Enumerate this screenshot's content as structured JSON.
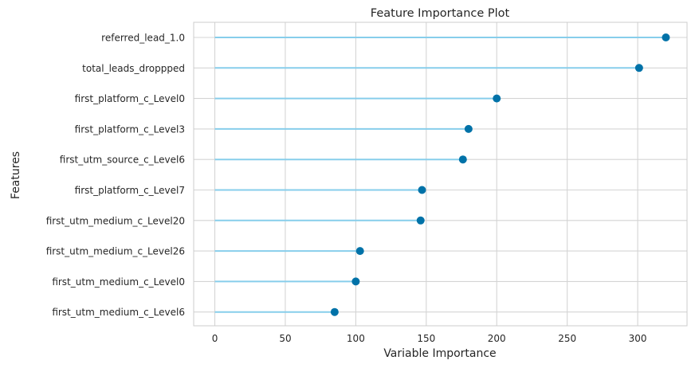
{
  "chart_data": {
    "type": "lollipop",
    "title": "Feature Importance Plot",
    "xlabel": "Variable Importance",
    "ylabel": "Features",
    "xlim": [
      -15,
      335
    ],
    "xticks": [
      0,
      50,
      100,
      150,
      200,
      250,
      300
    ],
    "grid": true,
    "colors": {
      "stem": "#87ceeb",
      "marker": "#0072a8",
      "grid": "#d4d4d4",
      "frame": "#cccccc"
    },
    "categories": [
      "referred_lead_1.0",
      "total_leads_droppped",
      "first_platform_c_Level0",
      "first_platform_c_Level3",
      "first_utm_source_c_Level6",
      "first_platform_c_Level7",
      "first_utm_medium_c_Level20",
      "first_utm_medium_c_Level26",
      "first_utm_medium_c_Level0",
      "first_utm_medium_c_Level6"
    ],
    "values": [
      320,
      301,
      200,
      180,
      176,
      147,
      146,
      103,
      100,
      85
    ]
  }
}
